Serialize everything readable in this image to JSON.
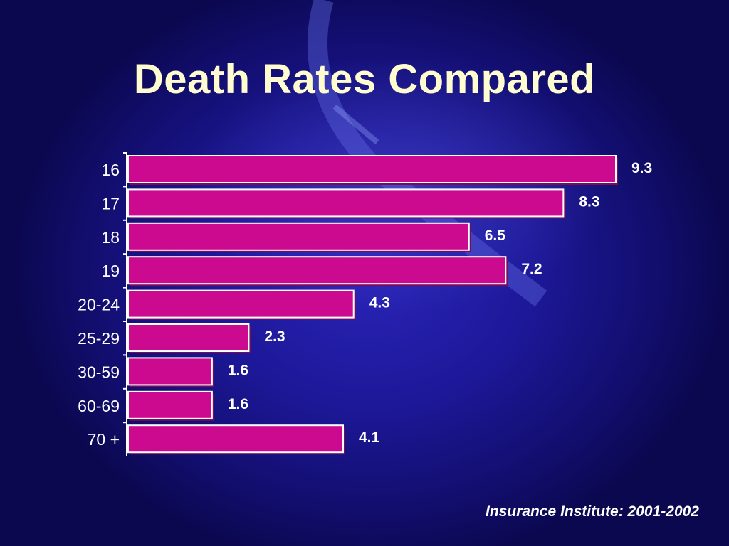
{
  "title": "Death Rates Compared",
  "source": "Insurance Institute: 2001-2002",
  "colors": {
    "bar": "#cc0a8f",
    "bar_edge": "#ffffff",
    "text": "#ffffff",
    "title": "#fffccf"
  },
  "chart_data": {
    "type": "bar",
    "orientation": "horizontal",
    "categories": [
      "16",
      "17",
      "18",
      "19",
      "20-24",
      "25-29",
      "30-59",
      "60-69",
      "70 +"
    ],
    "values": [
      9.3,
      8.3,
      6.5,
      7.2,
      4.3,
      2.3,
      1.6,
      1.6,
      4.1
    ],
    "value_labels": [
      "9.3",
      "8.3",
      "6.5",
      "7.2",
      "4.3",
      "2.3",
      "1.6",
      "1.6",
      "4.1"
    ],
    "title": "Death Rates Compared",
    "xlabel": "",
    "ylabel": "",
    "xlim": [
      0,
      9.3
    ],
    "grid": false,
    "legend": "none"
  }
}
